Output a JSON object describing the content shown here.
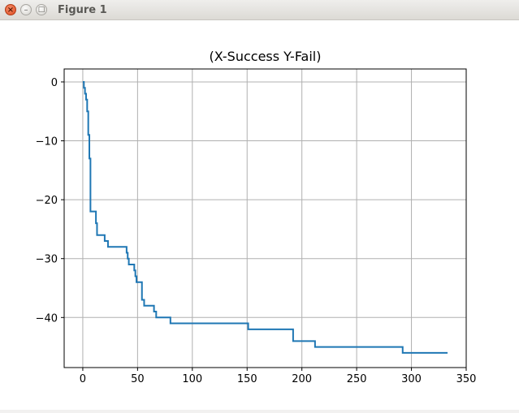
{
  "window": {
    "title": "Figure 1",
    "close_glyph": "×",
    "minimize_glyph": "–",
    "maximize_glyph": "□"
  },
  "chart_data": {
    "type": "line",
    "title": "(X-Success Y-Fail)",
    "xlabel": "",
    "ylabel": "",
    "xlim": [
      -17,
      350
    ],
    "ylim": [
      -48.5,
      2.2
    ],
    "xticks": [
      0,
      50,
      100,
      150,
      200,
      250,
      300,
      350
    ],
    "xtick_labels": [
      "0",
      "50",
      "100",
      "150",
      "200",
      "250",
      "300",
      "350"
    ],
    "yticks": [
      0,
      -10,
      -20,
      -30,
      -40
    ],
    "ytick_labels": [
      "0",
      "−10",
      "−20",
      "−30",
      "−40"
    ],
    "grid": true,
    "line_color": "#1f77b4",
    "grid_color": "#b0b0b0",
    "series": [
      {
        "x": [
          0,
          1,
          1,
          2,
          2,
          3,
          3,
          4,
          4,
          5,
          5,
          6,
          6,
          7,
          7,
          8,
          8,
          12,
          12,
          13,
          13,
          20,
          20,
          23,
          23,
          40,
          40,
          41,
          41,
          42,
          42,
          47,
          47,
          48,
          48,
          49,
          49,
          54,
          54,
          55,
          55,
          56,
          56,
          65,
          65,
          67,
          67,
          80,
          80,
          151,
          151,
          192,
          192,
          212,
          212,
          292,
          292,
          333
        ],
        "y": [
          0,
          0,
          -1,
          -1,
          -2,
          -2,
          -3,
          -3,
          -5,
          -5,
          -9,
          -9,
          -13,
          -13,
          -22,
          -22,
          -22,
          -22,
          -24,
          -24,
          -26,
          -26,
          -27,
          -27,
          -28,
          -28,
          -29,
          -29,
          -30,
          -30,
          -31,
          -31,
          -32,
          -32,
          -33,
          -33,
          -34,
          -34,
          -37,
          -37,
          -37,
          -37,
          -38,
          -38,
          -39,
          -39,
          -40,
          -40,
          -41,
          -41,
          -42,
          -42,
          -44,
          -44,
          -45,
          -45,
          -46,
          -46
        ]
      }
    ]
  }
}
